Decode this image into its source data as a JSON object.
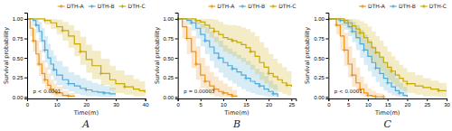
{
  "chart_data": [
    {
      "type": "step",
      "title": "A",
      "xlabel": "Time(m)",
      "ylabel": "Survival probability",
      "annotations": [
        "p < 0.0001"
      ],
      "legend": "top-right",
      "grid": false,
      "xlim": [
        0,
        40
      ],
      "ylim": [
        -0.02,
        1.08
      ],
      "xticks": [
        0,
        10,
        20,
        30,
        40
      ],
      "yticks": [
        {
          "value": 0,
          "label": "0.00"
        },
        0.25,
        {
          "value": 0.5,
          "label": "0.50"
        },
        0.75,
        {
          "value": 1,
          "label": "1.00"
        }
      ],
      "series": [
        {
          "name": "DTH-A",
          "color": "#E8921A",
          "marker": "plus",
          "x": [
            0,
            1,
            2,
            3,
            4,
            5,
            6,
            7,
            8,
            9,
            10,
            12,
            14,
            16
          ],
          "values": [
            1.0,
            0.88,
            0.72,
            0.55,
            0.42,
            0.3,
            0.22,
            0.15,
            0.1,
            0.07,
            0.05,
            0.02,
            0.01,
            0.0
          ],
          "lo": [
            1.0,
            0.78,
            0.58,
            0.4,
            0.27,
            0.17,
            0.1,
            0.06,
            0.03,
            0.01,
            0.0,
            0.0,
            0.0,
            0.0
          ],
          "hi": [
            1.0,
            0.97,
            0.87,
            0.72,
            0.6,
            0.47,
            0.38,
            0.3,
            0.22,
            0.17,
            0.13,
            0.08,
            0.05,
            0.03
          ]
        },
        {
          "name": "DTH-B",
          "color": "#4DAAD8",
          "marker": "plus",
          "x": [
            0,
            1,
            2,
            3,
            4,
            5,
            6,
            7,
            8,
            9,
            10,
            12,
            14,
            16,
            18,
            20,
            22,
            24,
            26,
            28,
            30
          ],
          "values": [
            1.0,
            1.0,
            0.98,
            0.92,
            0.84,
            0.72,
            0.6,
            0.5,
            0.42,
            0.35,
            0.28,
            0.22,
            0.17,
            0.14,
            0.11,
            0.09,
            0.07,
            0.06,
            0.05,
            0.04,
            0.04
          ],
          "lo": [
            1.0,
            1.0,
            0.92,
            0.82,
            0.7,
            0.57,
            0.44,
            0.35,
            0.27,
            0.21,
            0.15,
            0.1,
            0.07,
            0.04,
            0.02,
            0.01,
            0.01,
            0.0,
            0.0,
            0.0,
            0.0
          ],
          "hi": [
            1.0,
            1.0,
            1.0,
            1.0,
            0.96,
            0.88,
            0.78,
            0.68,
            0.6,
            0.53,
            0.46,
            0.39,
            0.32,
            0.28,
            0.24,
            0.21,
            0.18,
            0.16,
            0.14,
            0.12,
            0.12
          ]
        },
        {
          "name": "DTH-C",
          "color": "#C9A800",
          "marker": "plus",
          "x": [
            0,
            2,
            4,
            6,
            8,
            10,
            12,
            14,
            16,
            18,
            20,
            22,
            25,
            28,
            30,
            33,
            36,
            38,
            40
          ],
          "values": [
            1.0,
            1.0,
            1.0,
            0.98,
            0.95,
            0.9,
            0.85,
            0.78,
            0.68,
            0.58,
            0.48,
            0.4,
            0.3,
            0.22,
            0.17,
            0.13,
            0.1,
            0.08,
            0.07
          ],
          "lo": [
            1.0,
            1.0,
            1.0,
            0.93,
            0.87,
            0.8,
            0.72,
            0.63,
            0.52,
            0.41,
            0.31,
            0.23,
            0.15,
            0.09,
            0.05,
            0.03,
            0.01,
            0.01,
            0.0
          ],
          "hi": [
            1.0,
            1.0,
            1.0,
            1.0,
            1.0,
            0.99,
            0.96,
            0.92,
            0.85,
            0.77,
            0.67,
            0.59,
            0.49,
            0.4,
            0.34,
            0.28,
            0.23,
            0.2,
            0.18
          ]
        }
      ]
    },
    {
      "type": "step",
      "title": "B",
      "xlabel": "Time(m)",
      "ylabel": "Survival probability",
      "annotations": [
        "p = 0.00003"
      ],
      "legend": "top-right",
      "grid": false,
      "xlim": [
        0,
        26
      ],
      "ylim": [
        -0.02,
        1.08
      ],
      "xticks": [
        0,
        5,
        10,
        15,
        20,
        25
      ],
      "yticks": [
        {
          "value": 0,
          "label": "0.00"
        },
        0.25,
        {
          "value": 0.5,
          "label": "0.50"
        },
        0.75,
        {
          "value": 1,
          "label": "1.00"
        }
      ],
      "series": [
        {
          "name": "DTH-A",
          "color": "#E8921A",
          "marker": "plus",
          "x": [
            0,
            1,
            2,
            3,
            4,
            5,
            6,
            7,
            8,
            9,
            10,
            11,
            12,
            13
          ],
          "values": [
            1.0,
            0.9,
            0.75,
            0.58,
            0.42,
            0.28,
            0.2,
            0.14,
            0.1,
            0.07,
            0.05,
            0.03,
            0.01,
            0.0
          ],
          "lo": [
            1.0,
            0.75,
            0.55,
            0.37,
            0.22,
            0.12,
            0.06,
            0.03,
            0.01,
            0.0,
            0.0,
            0.0,
            0.0,
            0.0
          ],
          "hi": [
            1.0,
            0.98,
            0.9,
            0.78,
            0.65,
            0.5,
            0.4,
            0.32,
            0.26,
            0.21,
            0.17,
            0.13,
            0.09,
            0.07
          ]
        },
        {
          "name": "DTH-B",
          "color": "#4DAAD8",
          "marker": "plus",
          "x": [
            0,
            1,
            2,
            3,
            4,
            5,
            6,
            7,
            8,
            9,
            10,
            11,
            12,
            13,
            14,
            15,
            16,
            17,
            18,
            19,
            20,
            21,
            22
          ],
          "values": [
            1.0,
            1.0,
            0.98,
            0.95,
            0.88,
            0.8,
            0.72,
            0.64,
            0.56,
            0.5,
            0.44,
            0.4,
            0.36,
            0.32,
            0.28,
            0.24,
            0.2,
            0.17,
            0.14,
            0.1,
            0.07,
            0.04,
            0.0
          ],
          "lo": [
            1.0,
            1.0,
            0.92,
            0.85,
            0.75,
            0.65,
            0.55,
            0.46,
            0.37,
            0.31,
            0.25,
            0.21,
            0.17,
            0.13,
            0.1,
            0.07,
            0.05,
            0.03,
            0.02,
            0.01,
            0.0,
            0.0,
            0.0
          ],
          "hi": [
            1.0,
            1.0,
            1.0,
            1.0,
            0.98,
            0.94,
            0.89,
            0.84,
            0.77,
            0.72,
            0.66,
            0.62,
            0.58,
            0.54,
            0.5,
            0.46,
            0.41,
            0.36,
            0.32,
            0.27,
            0.21,
            0.16,
            0.1
          ]
        },
        {
          "name": "DTH-C",
          "color": "#C9A800",
          "marker": "plus",
          "x": [
            0,
            1,
            2,
            3,
            4,
            5,
            6,
            7,
            8,
            9,
            10,
            11,
            12,
            13,
            14,
            15,
            16,
            17,
            18,
            19,
            20,
            21,
            22,
            23,
            24,
            25
          ],
          "values": [
            1.0,
            1.0,
            1.0,
            1.0,
            0.98,
            0.96,
            0.92,
            0.88,
            0.84,
            0.8,
            0.76,
            0.74,
            0.72,
            0.7,
            0.67,
            0.63,
            0.58,
            0.52,
            0.44,
            0.38,
            0.3,
            0.26,
            0.22,
            0.18,
            0.15,
            0.13
          ],
          "lo": [
            1.0,
            1.0,
            1.0,
            1.0,
            0.93,
            0.88,
            0.82,
            0.76,
            0.7,
            0.64,
            0.58,
            0.55,
            0.52,
            0.49,
            0.45,
            0.41,
            0.35,
            0.29,
            0.22,
            0.17,
            0.12,
            0.09,
            0.06,
            0.04,
            0.02,
            0.01
          ],
          "hi": [
            1.0,
            1.0,
            1.0,
            1.0,
            1.0,
            1.0,
            1.0,
            1.0,
            0.99,
            0.96,
            0.93,
            0.92,
            0.92,
            0.91,
            0.89,
            0.87,
            0.83,
            0.78,
            0.7,
            0.63,
            0.55,
            0.49,
            0.43,
            0.38,
            0.33,
            0.3
          ]
        }
      ]
    },
    {
      "type": "step",
      "title": "C",
      "xlabel": "Time(m)",
      "ylabel": "Survival probability",
      "annotations": [
        "p < 0.0001"
      ],
      "legend": "top-right",
      "grid": false,
      "xlim": [
        0,
        30
      ],
      "ylim": [
        -0.02,
        1.08
      ],
      "xticks": [
        0,
        5,
        10,
        15,
        20,
        25,
        30
      ],
      "yticks": [
        {
          "value": 0,
          "label": "0.00"
        },
        0.25,
        {
          "value": 0.5,
          "label": "0.50"
        },
        0.75,
        {
          "value": 1,
          "label": "1.00"
        }
      ],
      "series": [
        {
          "name": "DTH-A",
          "color": "#E8921A",
          "marker": "plus",
          "x": [
            0,
            1,
            2,
            3,
            4,
            5,
            6,
            7,
            8,
            9,
            10,
            11,
            12,
            13,
            14
          ],
          "values": [
            1.0,
            1.0,
            0.92,
            0.78,
            0.6,
            0.42,
            0.28,
            0.18,
            0.1,
            0.05,
            0.02,
            0.01,
            0.0,
            0.0,
            0.0
          ],
          "lo": [
            1.0,
            1.0,
            0.8,
            0.6,
            0.4,
            0.25,
            0.13,
            0.06,
            0.02,
            0.0,
            0.0,
            0.0,
            0.0,
            0.0,
            0.0
          ],
          "hi": [
            1.0,
            1.0,
            0.99,
            0.94,
            0.82,
            0.65,
            0.5,
            0.38,
            0.26,
            0.17,
            0.11,
            0.08,
            0.05,
            0.04,
            0.03
          ]
        },
        {
          "name": "DTH-B",
          "color": "#4DAAD8",
          "marker": "plus",
          "x": [
            0,
            1,
            2,
            3,
            4,
            5,
            6,
            7,
            8,
            9,
            10,
            11,
            12,
            13,
            14,
            15,
            16,
            17,
            18,
            19,
            20
          ],
          "values": [
            1.0,
            1.0,
            1.0,
            0.98,
            0.95,
            0.9,
            0.84,
            0.76,
            0.68,
            0.6,
            0.52,
            0.44,
            0.37,
            0.3,
            0.24,
            0.18,
            0.13,
            0.08,
            0.05,
            0.02,
            0.0
          ],
          "lo": [
            1.0,
            1.0,
            1.0,
            0.92,
            0.86,
            0.78,
            0.7,
            0.6,
            0.5,
            0.41,
            0.33,
            0.26,
            0.19,
            0.13,
            0.08,
            0.05,
            0.02,
            0.01,
            0.0,
            0.0,
            0.0
          ],
          "hi": [
            1.0,
            1.0,
            1.0,
            1.0,
            1.0,
            0.99,
            0.96,
            0.92,
            0.86,
            0.8,
            0.73,
            0.65,
            0.58,
            0.52,
            0.45,
            0.38,
            0.31,
            0.24,
            0.18,
            0.13,
            0.08
          ]
        },
        {
          "name": "DTH-C",
          "color": "#C9A800",
          "marker": "plus",
          "x": [
            0,
            1,
            2,
            3,
            4,
            5,
            6,
            7,
            8,
            9,
            10,
            11,
            12,
            13,
            14,
            15,
            16,
            17,
            18,
            19,
            20,
            22,
            24,
            26,
            28,
            30
          ],
          "values": [
            1.0,
            1.0,
            1.0,
            1.0,
            0.98,
            0.95,
            0.91,
            0.87,
            0.82,
            0.76,
            0.7,
            0.63,
            0.57,
            0.51,
            0.44,
            0.38,
            0.33,
            0.28,
            0.24,
            0.2,
            0.17,
            0.14,
            0.12,
            0.1,
            0.08,
            0.07
          ],
          "lo": [
            1.0,
            1.0,
            1.0,
            1.0,
            0.92,
            0.87,
            0.81,
            0.74,
            0.67,
            0.6,
            0.53,
            0.45,
            0.39,
            0.33,
            0.26,
            0.21,
            0.17,
            0.13,
            0.1,
            0.07,
            0.05,
            0.03,
            0.01,
            0.01,
            0.0,
            0.0
          ],
          "hi": [
            1.0,
            1.0,
            1.0,
            1.0,
            1.0,
            1.0,
            1.0,
            0.99,
            0.97,
            0.94,
            0.9,
            0.84,
            0.78,
            0.72,
            0.65,
            0.58,
            0.52,
            0.47,
            0.41,
            0.37,
            0.32,
            0.28,
            0.24,
            0.21,
            0.18,
            0.16
          ]
        }
      ]
    }
  ]
}
